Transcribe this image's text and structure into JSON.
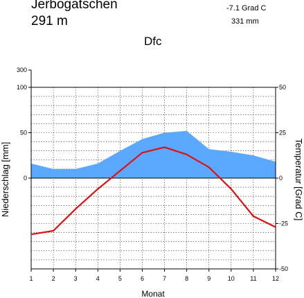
{
  "station": {
    "name": "Jerbogatschen",
    "elevation": "291  m",
    "mean_temperature": "-7.1 Grad C",
    "annual_precipitation": "331 mm",
    "climate_class": "Dfc"
  },
  "colors": {
    "precipitation_fill": "#5aa8ff",
    "temperature_line": "#e01010",
    "grid": "#000000"
  },
  "chart_data": {
    "type": "line",
    "title": "",
    "xlabel": "Monat",
    "ylabel_left": "Niederschlag [mm]",
    "ylabel_right": "Temperatur [Grad C]",
    "categories": [
      "1",
      "2",
      "3",
      "4",
      "5",
      "6",
      "7",
      "8",
      "9",
      "10",
      "11",
      "12"
    ],
    "precip_ticks": [
      "300",
      "100",
      "50",
      "0"
    ],
    "temp_ticks": [
      "50",
      "25",
      "0",
      "-25",
      "-50"
    ],
    "precip_ylim": [
      0,
      100
    ],
    "temp_ylim": [
      -50,
      50
    ],
    "grid": true,
    "series": [
      {
        "name": "Niederschlag",
        "axis": "left",
        "values": [
          16,
          10,
          10,
          16,
          30,
          43,
          50,
          52,
          32,
          29,
          25,
          18
        ]
      },
      {
        "name": "Temperatur",
        "axis": "right",
        "values": [
          -31,
          -29,
          -17,
          -6,
          4,
          14,
          17,
          13,
          6,
          -6,
          -21,
          -27
        ]
      }
    ]
  }
}
